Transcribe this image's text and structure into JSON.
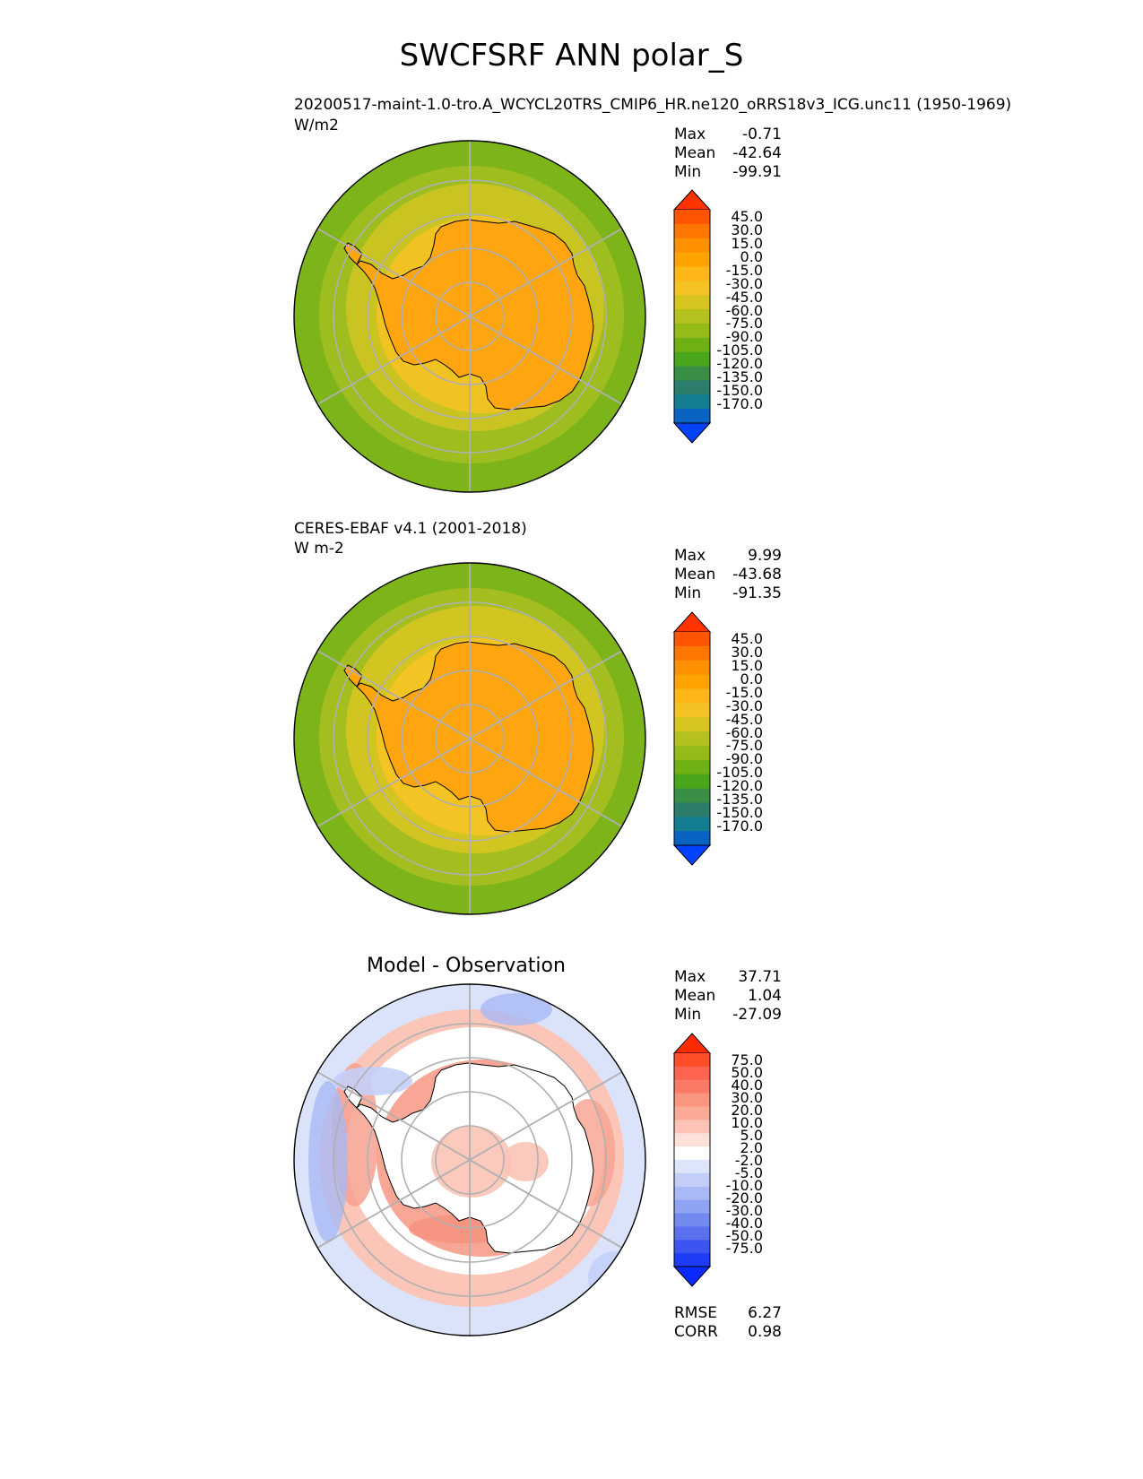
{
  "title": "SWCFSRF ANN polar_S",
  "panels": [
    {
      "id": "model",
      "title": "20200517-maint-1.0-tro.A_WCYCL20TRS_CMIP6_HR.ne120_oRRS18v3_ICG.unc11 (1950-1969)",
      "units": "W/m2",
      "stats": [
        {
          "label": "Max",
          "value": "-0.71"
        },
        {
          "label": "Mean",
          "value": "-42.64"
        },
        {
          "label": "Min",
          "value": "-99.91"
        }
      ],
      "colorbar": {
        "labels": [
          "45.0",
          "30.0",
          "15.0",
          "0.0",
          "-15.0",
          "-30.0",
          "-45.0",
          "-60.0",
          "-75.0",
          "-90.0",
          "-105.0",
          "-120.0",
          "-135.0",
          "-150.0",
          "-170.0"
        ],
        "colors": [
          "#ff3300",
          "#ff5500",
          "#ff7700",
          "#ff9100",
          "#ffa300",
          "#ffb616",
          "#f5c223",
          "#d6c520",
          "#b5c11e",
          "#95bb19",
          "#6fb115",
          "#49a61b",
          "#3a8f47",
          "#2c7d6b",
          "#137e92",
          "#0863c3",
          "#0042ff"
        ]
      },
      "map_colors": {
        "ocean_outer": "#7db41a",
        "ocean_mid": "#9ebd1e",
        "ocean_inner": "#c9c421",
        "shelf": "#f0c322",
        "land": "#ffa510"
      }
    },
    {
      "id": "obs",
      "title": "CERES-EBAF v4.1 (2001-2018)",
      "units": "W m-2",
      "stats": [
        {
          "label": "Max",
          "value": "9.99"
        },
        {
          "label": "Mean",
          "value": "-43.68"
        },
        {
          "label": "Min",
          "value": "-91.35"
        }
      ],
      "colorbar": {
        "labels": [
          "45.0",
          "30.0",
          "15.0",
          "0.0",
          "-15.0",
          "-30.0",
          "-45.0",
          "-60.0",
          "-75.0",
          "-90.0",
          "-105.0",
          "-120.0",
          "-135.0",
          "-150.0",
          "-170.0"
        ],
        "colors": [
          "#ff3300",
          "#ff5500",
          "#ff7700",
          "#ff9100",
          "#ffa300",
          "#ffb616",
          "#f5c223",
          "#d6c520",
          "#b5c11e",
          "#95bb19",
          "#6fb115",
          "#49a61b",
          "#3a8f47",
          "#2c7d6b",
          "#137e92",
          "#0863c3",
          "#0042ff"
        ]
      },
      "map_colors": {
        "ocean_outer": "#7db41a",
        "ocean_mid": "#a5be1f",
        "ocean_inner": "#d2c521",
        "shelf": "#f3c423",
        "land": "#ffa510"
      }
    },
    {
      "id": "diff",
      "title": "Model - Observation",
      "units": "",
      "stats": [
        {
          "label": "Max",
          "value": "37.71"
        },
        {
          "label": "Mean",
          "value": "1.04"
        },
        {
          "label": "Min",
          "value": "-27.09"
        }
      ],
      "extra_stats": [
        {
          "label": "RMSE",
          "value": "6.27"
        },
        {
          "label": "CORR",
          "value": "0.98"
        }
      ],
      "colorbar": {
        "labels": [
          "75.0",
          "50.0",
          "40.0",
          "30.0",
          "20.0",
          "10.0",
          "5.0",
          "2.0",
          "-2.0",
          "-5.0",
          "-10.0",
          "-20.0",
          "-30.0",
          "-40.0",
          "-50.0",
          "-75.0"
        ],
        "colors": [
          "#ff2a00",
          "#ff4d2a",
          "#fc6450",
          "#fb7a66",
          "#fa957f",
          "#fbaa98",
          "#fcc3b6",
          "#fde0d8",
          "#ffffff",
          "#dde5fb",
          "#c3cff8",
          "#a9b9f5",
          "#8fa3f2",
          "#7289ef",
          "#5a70ee",
          "#3d55f0",
          "#1e3bf5",
          "#0a2aff"
        ]
      },
      "map_colors": {
        "ocean_outer": "#dbe3fb",
        "ocean_mid": "#fbc5b8",
        "ocean_inner": "#ffffff",
        "shelf": "#f8a796",
        "land": "#ffffff"
      }
    }
  ]
}
